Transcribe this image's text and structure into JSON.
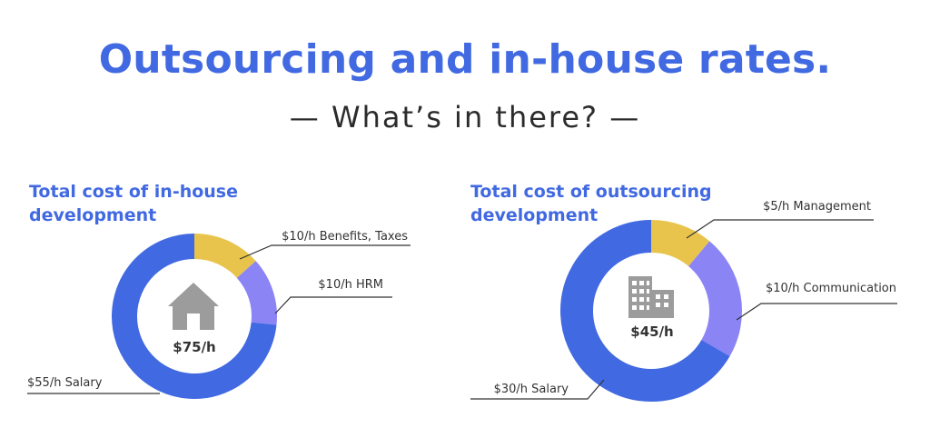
{
  "header": {
    "title": "Outsourcing and in-house rates.",
    "subtitle": "— What’s in there? —"
  },
  "colors": {
    "accent": "#4169e1",
    "salary": "#4169e1",
    "yellow": "#e8c44c",
    "purple": "#8b84f5",
    "icon": "#9c9c9c",
    "leader": "#333333"
  },
  "chart_data": [
    {
      "type": "pie",
      "title_line1": "Total cost of in-house",
      "title_line2": "development",
      "center_label": "$75/h",
      "icon": "house-icon",
      "slices": [
        {
          "label": "$10/h Benefits, Taxes",
          "value": 10,
          "color": "#e8c44c"
        },
        {
          "label": "$10/h HRM",
          "value": 10,
          "color": "#8b84f5"
        },
        {
          "label": "$55/h Salary",
          "value": 55,
          "color": "#4169e1"
        }
      ]
    },
    {
      "type": "pie",
      "title_line1": "Total cost of outsourcing",
      "title_line2": "development",
      "center_label": "$45/h",
      "icon": "office-building-icon",
      "slices": [
        {
          "label": "$5/h Management",
          "value": 5,
          "color": "#e8c44c"
        },
        {
          "label": "$10/h Communication",
          "value": 10,
          "color": "#8b84f5"
        },
        {
          "label": "$30/h Salary",
          "value": 30,
          "color": "#4169e1"
        }
      ]
    }
  ]
}
